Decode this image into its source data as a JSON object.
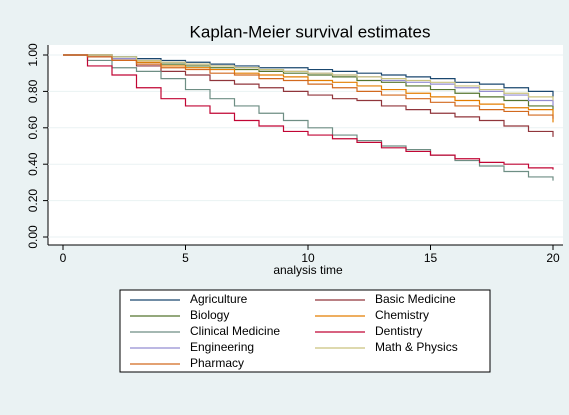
{
  "chart_data": {
    "type": "step",
    "title": "Kaplan-Meier survival estimates",
    "x_label": "analysis time",
    "x": [
      0,
      1,
      2,
      3,
      4,
      5,
      6,
      7,
      8,
      9,
      10,
      11,
      12,
      13,
      14,
      15,
      16,
      17,
      18,
      19,
      20
    ],
    "xlim": [
      0,
      20
    ],
    "xticks": [
      0,
      5,
      10,
      15,
      20
    ],
    "ylim": [
      0,
      1
    ],
    "yticks": [
      {
        "value": 0,
        "label": "0.00"
      },
      {
        "value": 0.2,
        "label": "0.20"
      },
      {
        "value": 0.4,
        "label": "0.40"
      },
      {
        "value": 0.6,
        "label": "0.60"
      },
      {
        "value": 0.8,
        "label": "0.80"
      },
      {
        "value": 1,
        "label": "1.00"
      }
    ],
    "grid": true,
    "series": [
      {
        "name": "Agriculture",
        "color": "#1a476f",
        "values": [
          1,
          1,
          0.99,
          0.98,
          0.97,
          0.96,
          0.95,
          0.94,
          0.93,
          0.93,
          0.92,
          0.91,
          0.9,
          0.89,
          0.88,
          0.87,
          0.85,
          0.84,
          0.82,
          0.8,
          0.77
        ]
      },
      {
        "name": "Basic Medicine",
        "color": "#90353b",
        "values": [
          1,
          0.99,
          0.97,
          0.94,
          0.91,
          0.89,
          0.86,
          0.84,
          0.82,
          0.8,
          0.78,
          0.76,
          0.75,
          0.72,
          0.7,
          0.68,
          0.66,
          0.64,
          0.61,
          0.58,
          0.55
        ]
      },
      {
        "name": "Biology",
        "color": "#55752f",
        "values": [
          1,
          1,
          0.98,
          0.96,
          0.95,
          0.94,
          0.93,
          0.92,
          0.91,
          0.9,
          0.89,
          0.88,
          0.86,
          0.85,
          0.83,
          0.81,
          0.79,
          0.77,
          0.75,
          0.72,
          0.7
        ]
      },
      {
        "name": "Chemistry",
        "color": "#e37e00",
        "values": [
          1,
          1,
          0.98,
          0.96,
          0.94,
          0.93,
          0.92,
          0.9,
          0.89,
          0.88,
          0.86,
          0.85,
          0.83,
          0.81,
          0.79,
          0.77,
          0.75,
          0.73,
          0.71,
          0.7,
          0.63
        ]
      },
      {
        "name": "Clinical Medicine",
        "color": "#6e8e84",
        "values": [
          1,
          0.97,
          0.93,
          0.91,
          0.87,
          0.81,
          0.76,
          0.72,
          0.68,
          0.64,
          0.6,
          0.56,
          0.53,
          0.5,
          0.48,
          0.45,
          0.42,
          0.39,
          0.36,
          0.33,
          0.31
        ]
      },
      {
        "name": "Dentistry",
        "color": "#c10534",
        "values": [
          1,
          0.94,
          0.89,
          0.82,
          0.76,
          0.72,
          0.68,
          0.64,
          0.61,
          0.58,
          0.56,
          0.54,
          0.52,
          0.49,
          0.47,
          0.45,
          0.43,
          0.41,
          0.4,
          0.38,
          0.37
        ]
      },
      {
        "name": "Engineering",
        "color": "#938dd2",
        "values": [
          1,
          1,
          0.98,
          0.97,
          0.96,
          0.95,
          0.94,
          0.93,
          0.92,
          0.91,
          0.9,
          0.89,
          0.88,
          0.86,
          0.85,
          0.84,
          0.82,
          0.8,
          0.78,
          0.75,
          0.72
        ]
      },
      {
        "name": "Math & Physics",
        "color": "#cac27e",
        "values": [
          1,
          1,
          0.99,
          0.97,
          0.96,
          0.95,
          0.94,
          0.93,
          0.92,
          0.91,
          0.9,
          0.89,
          0.88,
          0.87,
          0.86,
          0.85,
          0.83,
          0.81,
          0.79,
          0.77,
          0.75
        ]
      },
      {
        "name": "Pharmacy",
        "color": "#d2691e",
        "values": [
          1,
          0.99,
          0.97,
          0.95,
          0.93,
          0.92,
          0.9,
          0.89,
          0.87,
          0.86,
          0.84,
          0.82,
          0.8,
          0.78,
          0.76,
          0.74,
          0.72,
          0.7,
          0.69,
          0.67,
          0.65
        ]
      }
    ]
  }
}
